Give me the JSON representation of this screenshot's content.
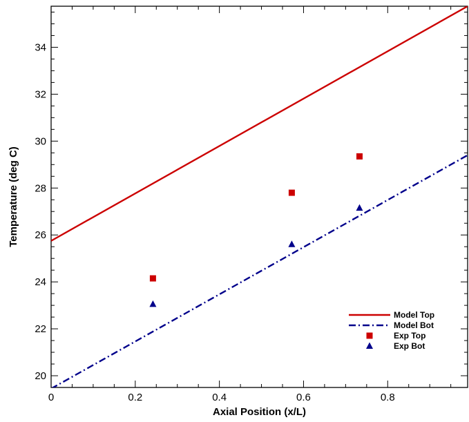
{
  "chart_data": {
    "type": "line",
    "title": "",
    "xlabel": "Axial Position (x/L)",
    "ylabel": "Temperature (deg C)",
    "xlim": [
      0,
      0.99
    ],
    "ylim": [
      19.5,
      35.75
    ],
    "xticks": [
      0,
      0.2,
      0.4,
      0.6,
      0.8
    ],
    "xtick_labels": [
      "0",
      "0.2",
      "0.4",
      "0.6",
      "0.8"
    ],
    "yticks": [
      20,
      22,
      24,
      26,
      28,
      30,
      32,
      34
    ],
    "ytick_labels": [
      "20",
      "22",
      "24",
      "26",
      "28",
      "30",
      "32",
      "34"
    ],
    "grid": false,
    "legend_position": "lower-right",
    "series": [
      {
        "name": "Model Top",
        "kind": "line",
        "style": "solid",
        "color": "#cc0000",
        "x": [
          0,
          0.99
        ],
        "y": [
          25.75,
          35.75
        ]
      },
      {
        "name": "Model Bot",
        "kind": "line",
        "style": "dashdot",
        "color": "#00008b",
        "x": [
          0,
          0.99
        ],
        "y": [
          19.45,
          29.4
        ]
      },
      {
        "name": "Exp Top",
        "kind": "scatter",
        "marker": "square",
        "color": "#cc0000",
        "x": [
          0.242,
          0.572,
          0.733
        ],
        "y": [
          24.15,
          27.8,
          29.35
        ]
      },
      {
        "name": "Exp Bot",
        "kind": "scatter",
        "marker": "triangle",
        "color": "#00008b",
        "x": [
          0.242,
          0.572,
          0.733
        ],
        "y": [
          23.05,
          25.6,
          27.15
        ]
      }
    ]
  }
}
